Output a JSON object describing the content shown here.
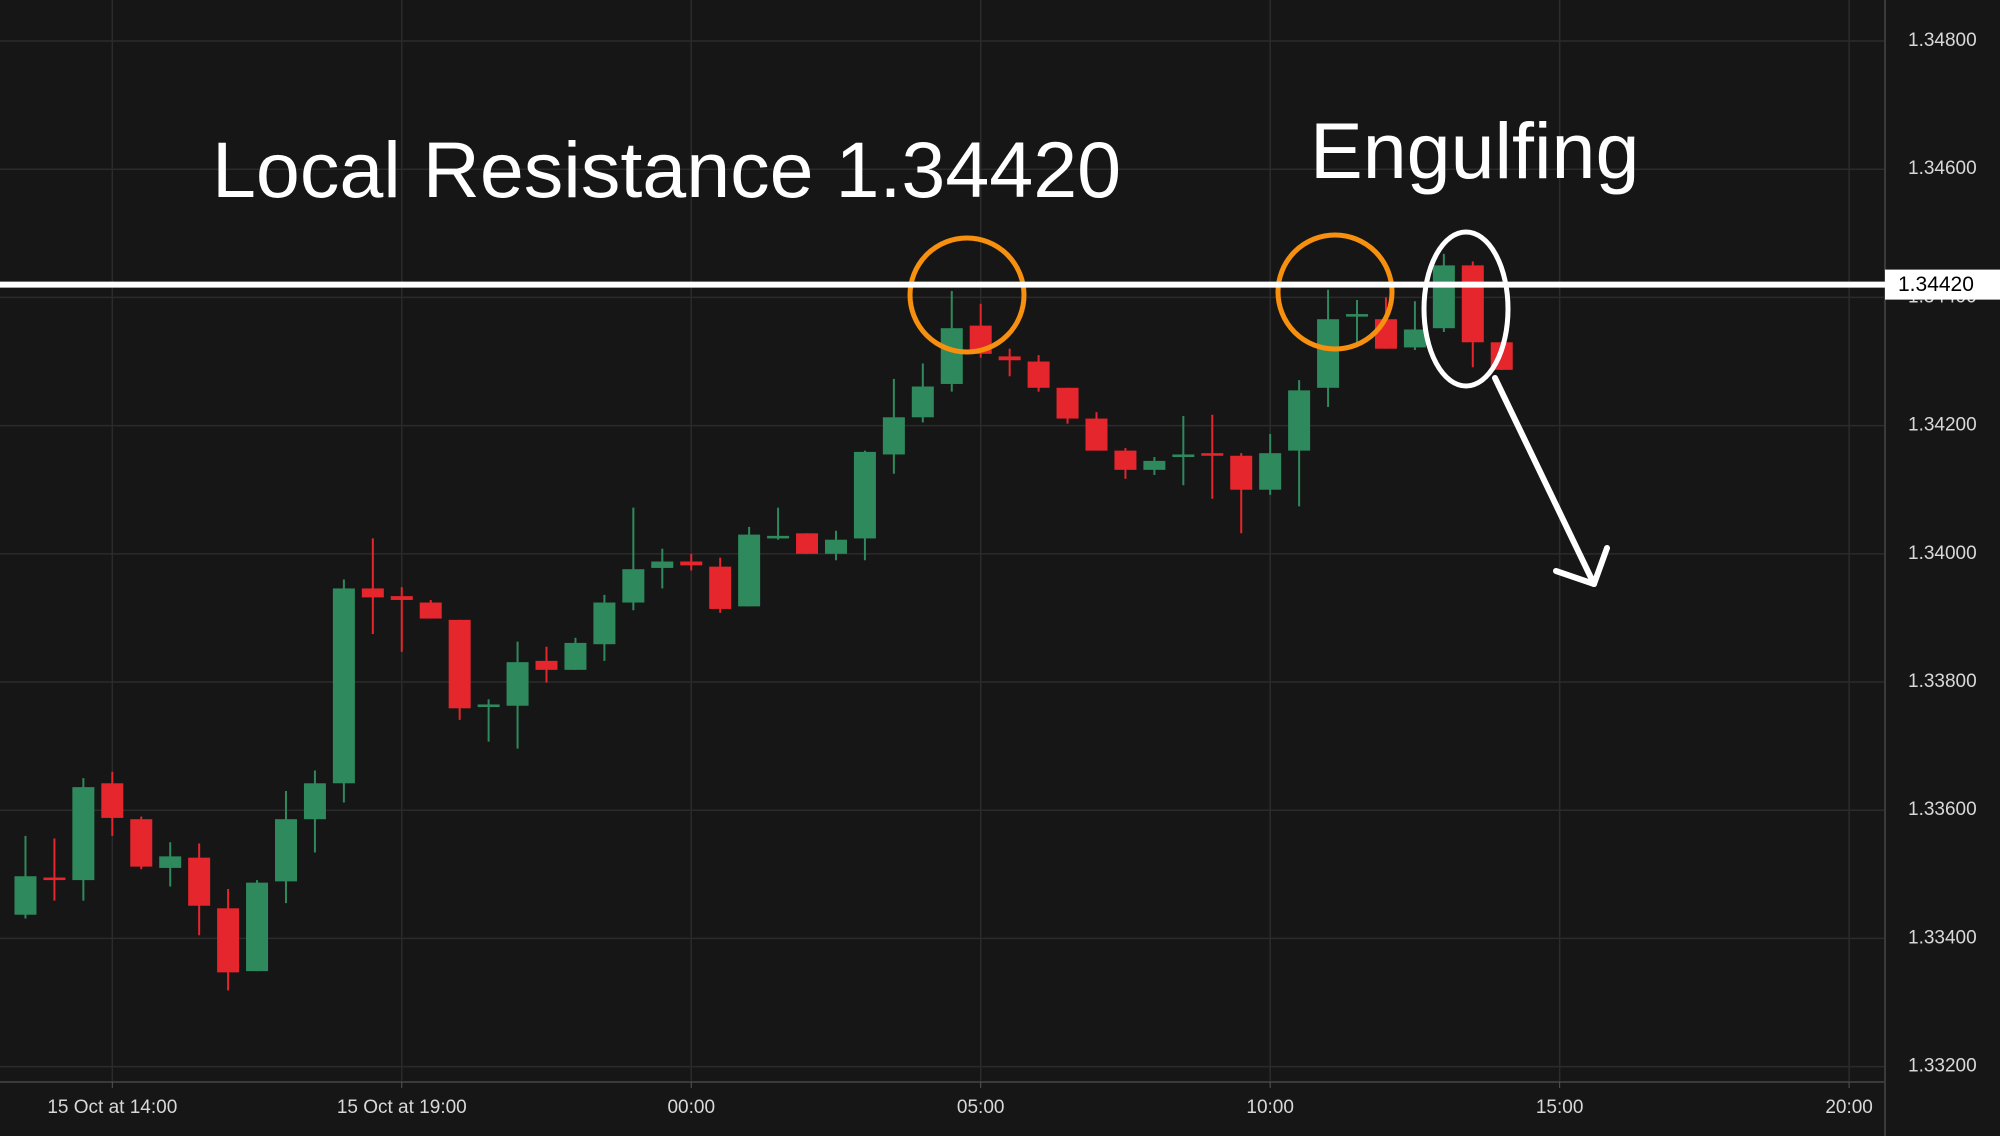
{
  "chart_data": {
    "type": "candlestick",
    "x": [
      -1.5,
      -1,
      -0.5,
      0,
      0.5,
      1,
      1.5,
      2,
      2.5,
      3,
      3.5,
      4,
      4.5,
      5,
      5.5,
      6,
      6.5,
      7,
      7.5,
      8,
      8.5,
      9,
      9.5,
      10,
      10.5,
      11,
      11.5,
      12,
      12.5,
      13,
      13.5,
      14,
      14.5,
      15,
      15.5,
      16,
      16.5,
      17,
      17.5,
      18,
      18.5,
      19,
      19.5,
      20,
      20.5,
      21,
      21.5,
      22,
      22.5,
      23,
      23.5,
      24
    ],
    "open": [
      1.33437,
      1.33495,
      1.33491,
      1.33642,
      1.33586,
      1.3351,
      1.33526,
      1.33447,
      1.33349,
      1.33489,
      1.33586,
      1.33642,
      1.33946,
      1.33934,
      1.33924,
      1.33897,
      1.33761,
      1.33763,
      1.33833,
      1.33819,
      1.33859,
      1.33924,
      1.33978,
      1.33988,
      1.3398,
      1.33918,
      1.34024,
      1.34032,
      1.34,
      1.34024,
      1.34155,
      1.34213,
      1.34265,
      1.34356,
      1.34308,
      1.343,
      1.34259,
      1.34211,
      1.34161,
      1.34131,
      1.34151,
      1.34157,
      1.34153,
      1.341,
      1.34161,
      1.34259,
      1.3437,
      1.34366,
      1.34322,
      1.34352,
      1.3445,
      1.3433
    ],
    "high": [
      1.3356,
      1.33556,
      1.3365,
      1.3366,
      1.3359,
      1.3355,
      1.33548,
      1.33477,
      1.33491,
      1.3363,
      1.33662,
      1.3396,
      1.34024,
      1.33948,
      1.33928,
      1.33897,
      1.33773,
      1.33863,
      1.33855,
      1.33869,
      1.33936,
      1.34072,
      1.34008,
      1.34,
      1.33994,
      1.34042,
      1.34072,
      1.34032,
      1.34036,
      1.34161,
      1.34273,
      1.34297,
      1.3441,
      1.3439,
      1.3432,
      1.3431,
      1.34259,
      1.34221,
      1.34165,
      1.34151,
      1.34215,
      1.34217,
      1.34157,
      1.34187,
      1.34271,
      1.34412,
      1.34396,
      1.344,
      1.34394,
      1.34468,
      1.34456,
      1.3433
    ],
    "low": [
      1.33431,
      1.33459,
      1.33459,
      1.3356,
      1.33508,
      1.33481,
      1.33405,
      1.33319,
      1.33349,
      1.33455,
      1.33534,
      1.33612,
      1.33875,
      1.33847,
      1.33899,
      1.33741,
      1.33707,
      1.33696,
      1.33799,
      1.33819,
      1.33833,
      1.33912,
      1.33946,
      1.33974,
      1.33908,
      1.33918,
      1.34022,
      1.34,
      1.3399,
      1.3399,
      1.34125,
      1.34205,
      1.34253,
      1.34306,
      1.34277,
      1.34253,
      1.34203,
      1.34161,
      1.34117,
      1.34123,
      1.34107,
      1.34086,
      1.34032,
      1.34092,
      1.34074,
      1.34229,
      1.3433,
      1.3432,
      1.34318,
      1.34346,
      1.34291,
      1.34287
    ],
    "close": [
      1.33497,
      1.33491,
      1.33636,
      1.33588,
      1.33512,
      1.33528,
      1.33451,
      1.33347,
      1.33487,
      1.33586,
      1.33642,
      1.33946,
      1.33932,
      1.33928,
      1.33899,
      1.33759,
      1.33765,
      1.33831,
      1.33819,
      1.33861,
      1.33924,
      1.33976,
      1.33988,
      1.33982,
      1.33914,
      1.3403,
      1.34028,
      1.34,
      1.34022,
      1.34159,
      1.34213,
      1.34261,
      1.34352,
      1.34312,
      1.34302,
      1.34259,
      1.34211,
      1.34161,
      1.34131,
      1.34145,
      1.34155,
      1.34153,
      1.341,
      1.34157,
      1.34255,
      1.34366,
      1.34374,
      1.3432,
      1.3435,
      1.3445,
      1.3433,
      1.34287
    ],
    "up_color": "#2e8a5c",
    "down_color": "#e5262c",
    "xlim": [
      -1.94,
      30.62
    ],
    "xticks": [
      {
        "value": 0,
        "label": "15 Oct at 14:00"
      },
      {
        "value": 5,
        "label": "15 Oct at 19:00"
      },
      {
        "value": 10,
        "label": "00:00"
      },
      {
        "value": 15,
        "label": "05:00"
      },
      {
        "value": 20,
        "label": "10:00"
      },
      {
        "value": 25,
        "label": "15:00"
      },
      {
        "value": 30,
        "label": "20:00"
      }
    ],
    "ylim": [
      1.33176,
      1.34864
    ],
    "yticks": [
      {
        "value": 1.332,
        "label": "1.33200"
      },
      {
        "value": 1.334,
        "label": "1.33400"
      },
      {
        "value": 1.336,
        "label": "1.33600"
      },
      {
        "value": 1.338,
        "label": "1.33800"
      },
      {
        "value": 1.34,
        "label": "1.34000"
      },
      {
        "value": 1.342,
        "label": "1.34200"
      },
      {
        "value": 1.344,
        "label": "1.34400"
      },
      {
        "value": 1.346,
        "label": "1.34600"
      },
      {
        "value": 1.348,
        "label": "1.34800"
      }
    ],
    "grid": true,
    "resistance": {
      "value": 1.3442,
      "label": "1.34420"
    },
    "annotations": [
      "Local Resistance 1.34420",
      "Engulfing"
    ]
  }
}
